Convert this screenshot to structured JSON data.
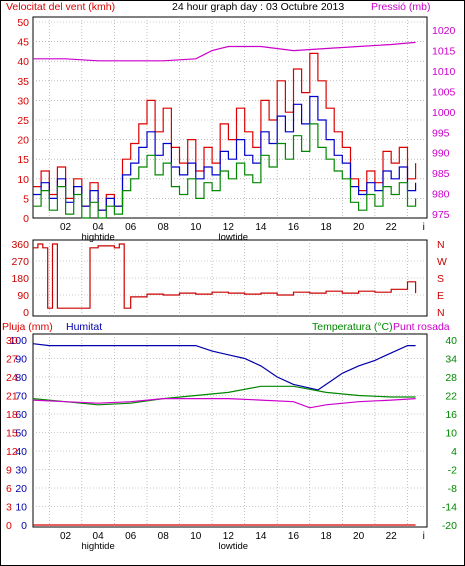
{
  "header": {
    "wind_label": "Velocitat del vent (kmh)",
    "title": "24 hour graph day : 03 Octubre 2013",
    "pressure_label": "Pressió (mb)"
  },
  "colors": {
    "wind": "#dd0000",
    "gust": "#dd0000",
    "speed": "#0000cc",
    "avg": "#008800",
    "pressure": "#cc00cc",
    "direction": "#cc0000",
    "rain": "#dd0000",
    "humidity": "#0000aa",
    "temperature": "#008800",
    "dewpoint": "#cc00cc",
    "grid": "#999999"
  },
  "chart_data": [
    {
      "type": "line",
      "panel": "wind_pressure",
      "x_ticks": [
        "02",
        "04",
        "06",
        "08",
        "10",
        "12",
        "14",
        "16",
        "18",
        "20",
        "22",
        "i"
      ],
      "x_annotations": [
        "hightide",
        "lowtide"
      ],
      "y_left": {
        "label": "Velocitat del vent (kmh)",
        "ticks": [
          0,
          5,
          10,
          15,
          20,
          25,
          30,
          35,
          40,
          45,
          50
        ],
        "range": [
          0,
          50
        ]
      },
      "y_right": {
        "label": "Pressió (mb)",
        "ticks": [
          975,
          980,
          985,
          990,
          995,
          1000,
          1005,
          1010,
          1015,
          1020
        ],
        "range": [
          974,
          1022
        ]
      },
      "series": [
        {
          "key": "gust",
          "points": [
            [
              0,
              8
            ],
            [
              0.5,
              12
            ],
            [
              1,
              6
            ],
            [
              1.5,
              13
            ],
            [
              2,
              5
            ],
            [
              2.5,
              10
            ],
            [
              3,
              3
            ],
            [
              3.5,
              9
            ],
            [
              4,
              2
            ],
            [
              4.5,
              6
            ],
            [
              5,
              3
            ],
            [
              5.5,
              15
            ],
            [
              6,
              19
            ],
            [
              6.5,
              24
            ],
            [
              7,
              30
            ],
            [
              7.5,
              22
            ],
            [
              8,
              28
            ],
            [
              8.5,
              18
            ],
            [
              9,
              14
            ],
            [
              9.5,
              20
            ],
            [
              10,
              12
            ],
            [
              10.5,
              18
            ],
            [
              11,
              14
            ],
            [
              11.5,
              24
            ],
            [
              12,
              20
            ],
            [
              12.5,
              28
            ],
            [
              13,
              22
            ],
            [
              13.5,
              18
            ],
            [
              14,
              30
            ],
            [
              14.5,
              25
            ],
            [
              15,
              35
            ],
            [
              15.5,
              27
            ],
            [
              16,
              38
            ],
            [
              16.5,
              32
            ],
            [
              17,
              42
            ],
            [
              17.5,
              35
            ],
            [
              18,
              28
            ],
            [
              18.5,
              22
            ],
            [
              19,
              18
            ],
            [
              19.5,
              10
            ],
            [
              20,
              7
            ],
            [
              20.5,
              12
            ],
            [
              21,
              9
            ],
            [
              21.5,
              17
            ],
            [
              22,
              14
            ],
            [
              22.5,
              18
            ],
            [
              23,
              10
            ],
            [
              23.5,
              14
            ]
          ]
        },
        {
          "key": "speed",
          "points": [
            [
              0,
              6
            ],
            [
              0.5,
              9
            ],
            [
              1,
              5
            ],
            [
              1.5,
              10
            ],
            [
              2,
              4
            ],
            [
              2.5,
              8
            ],
            [
              3,
              3
            ],
            [
              3.5,
              7
            ],
            [
              4,
              2
            ],
            [
              4.5,
              5
            ],
            [
              5,
              3
            ],
            [
              5.5,
              11
            ],
            [
              6,
              14
            ],
            [
              6.5,
              18
            ],
            [
              7,
              22
            ],
            [
              7.5,
              16
            ],
            [
              8,
              19
            ],
            [
              8.5,
              13
            ],
            [
              9,
              11
            ],
            [
              9.5,
              14
            ],
            [
              10,
              10
            ],
            [
              10.5,
              13
            ],
            [
              11,
              11
            ],
            [
              11.5,
              17
            ],
            [
              12,
              15
            ],
            [
              12.5,
              20
            ],
            [
              13,
              16
            ],
            [
              13.5,
              14
            ],
            [
              14,
              22
            ],
            [
              14.5,
              19
            ],
            [
              15,
              26
            ],
            [
              15.5,
              22
            ],
            [
              16,
              29
            ],
            [
              16.5,
              24
            ],
            [
              17,
              31
            ],
            [
              17.5,
              25
            ],
            [
              18,
              20
            ],
            [
              18.5,
              16
            ],
            [
              19,
              14
            ],
            [
              19.5,
              8
            ],
            [
              20,
              6
            ],
            [
              20.5,
              9
            ],
            [
              21,
              7
            ],
            [
              21.5,
              12
            ],
            [
              22,
              10
            ],
            [
              22.5,
              13
            ],
            [
              23,
              7
            ],
            [
              23.5,
              9
            ]
          ]
        },
        {
          "key": "avg",
          "points": [
            [
              0,
              3
            ],
            [
              0.5,
              7
            ],
            [
              1,
              2
            ],
            [
              1.5,
              8
            ],
            [
              2,
              1
            ],
            [
              2.5,
              6
            ],
            [
              3,
              0
            ],
            [
              3.5,
              4
            ],
            [
              4,
              0
            ],
            [
              4.5,
              3
            ],
            [
              5,
              1
            ],
            [
              5.5,
              7
            ],
            [
              6,
              10
            ],
            [
              6.5,
              13
            ],
            [
              7,
              16
            ],
            [
              7.5,
              11
            ],
            [
              8,
              14
            ],
            [
              8.5,
              8
            ],
            [
              9,
              6
            ],
            [
              9.5,
              10
            ],
            [
              10,
              5
            ],
            [
              10.5,
              9
            ],
            [
              11,
              7
            ],
            [
              11.5,
              12
            ],
            [
              12,
              10
            ],
            [
              12.5,
              14
            ],
            [
              13,
              11
            ],
            [
              13.5,
              9
            ],
            [
              14,
              16
            ],
            [
              14.5,
              13
            ],
            [
              15,
              19
            ],
            [
              15.5,
              15
            ],
            [
              16,
              21
            ],
            [
              16.5,
              17
            ],
            [
              17,
              24
            ],
            [
              17.5,
              18
            ],
            [
              18,
              15
            ],
            [
              18.5,
              12
            ],
            [
              19,
              10
            ],
            [
              19.5,
              4
            ],
            [
              20,
              2
            ],
            [
              20.5,
              6
            ],
            [
              21,
              3
            ],
            [
              21.5,
              8
            ],
            [
              22,
              6
            ],
            [
              22.5,
              9
            ],
            [
              23,
              3
            ],
            [
              23.5,
              5
            ]
          ]
        },
        {
          "key": "pressure",
          "points": [
            [
              0,
              1013
            ],
            [
              2,
              1013
            ],
            [
              4,
              1012.5
            ],
            [
              6,
              1012.5
            ],
            [
              8,
              1012.5
            ],
            [
              10,
              1013
            ],
            [
              11,
              1015
            ],
            [
              12,
              1016
            ],
            [
              14,
              1016
            ],
            [
              16,
              1015
            ],
            [
              18,
              1015.5
            ],
            [
              20,
              1016
            ],
            [
              22,
              1016.5
            ],
            [
              23.5,
              1017
            ]
          ]
        }
      ]
    },
    {
      "type": "line",
      "panel": "wind_direction",
      "y_left": {
        "ticks": [
          0,
          90,
          180,
          270,
          360
        ],
        "range": [
          0,
          360
        ]
      },
      "y_right": {
        "ticks": [
          "N",
          "W",
          "S",
          "E",
          "N"
        ]
      },
      "series": [
        {
          "key": "direction",
          "points": [
            [
              0,
              340
            ],
            [
              0.3,
              360
            ],
            [
              0.6,
              340
            ],
            [
              0.9,
              20
            ],
            [
              1.2,
              360
            ],
            [
              1.5,
              20
            ],
            [
              2,
              20
            ],
            [
              3,
              20
            ],
            [
              3.5,
              340
            ],
            [
              4,
              350
            ],
            [
              4.5,
              350
            ],
            [
              5,
              340
            ],
            [
              5.3,
              360
            ],
            [
              5.6,
              20
            ],
            [
              6,
              80
            ],
            [
              7,
              95
            ],
            [
              8,
              90
            ],
            [
              9,
              100
            ],
            [
              10,
              95
            ],
            [
              11,
              105
            ],
            [
              12,
              100
            ],
            [
              13,
              95
            ],
            [
              14,
              100
            ],
            [
              15,
              90
            ],
            [
              16,
              105
            ],
            [
              17,
              100
            ],
            [
              18,
              110
            ],
            [
              19,
              100
            ],
            [
              20,
              110
            ],
            [
              21,
              105
            ],
            [
              22,
              120
            ],
            [
              23,
              160
            ],
            [
              23.5,
              100
            ]
          ]
        }
      ]
    },
    {
      "type": "line",
      "panel": "rain_humidity_temperature",
      "labels": {
        "rain": "Pluja (mm)",
        "humidity": "Humitat",
        "temperature": "Temperatura (°C)",
        "dewpoint": "Punt rosada"
      },
      "y_left": {
        "ticks": [
          0,
          10,
          20,
          30,
          40,
          50,
          60,
          70,
          80,
          90,
          100
        ],
        "range": [
          0,
          100
        ]
      },
      "y_left_rain": {
        "ticks": [
          0,
          3,
          6,
          9,
          12,
          15,
          18,
          21,
          24,
          27,
          30
        ],
        "range": [
          0,
          30
        ]
      },
      "y_right": {
        "ticks": [
          -20,
          -14,
          -8,
          -2,
          4,
          10,
          16,
          22,
          28,
          34,
          40
        ],
        "range": [
          -20,
          40
        ]
      },
      "series": [
        {
          "key": "humidity",
          "points": [
            [
              0,
              98
            ],
            [
              1,
              97
            ],
            [
              2,
              97
            ],
            [
              4,
              97
            ],
            [
              6,
              97
            ],
            [
              8,
              97
            ],
            [
              10,
              97
            ],
            [
              11,
              94
            ],
            [
              12,
              92
            ],
            [
              13,
              90
            ],
            [
              14,
              86
            ],
            [
              15,
              80
            ],
            [
              16,
              76
            ],
            [
              17,
              74
            ],
            [
              17.5,
              73
            ],
            [
              18,
              76
            ],
            [
              19,
              82
            ],
            [
              20,
              86
            ],
            [
              21,
              89
            ],
            [
              22,
              93
            ],
            [
              23,
              97
            ],
            [
              23.5,
              97
            ]
          ]
        },
        {
          "key": "temperature",
          "points": [
            [
              0,
              21
            ],
            [
              2,
              20
            ],
            [
              4,
              19
            ],
            [
              6,
              19.5
            ],
            [
              8,
              21
            ],
            [
              10,
              22
            ],
            [
              12,
              23
            ],
            [
              14,
              25
            ],
            [
              16,
              25
            ],
            [
              17,
              24
            ],
            [
              18,
              23
            ],
            [
              20,
              22
            ],
            [
              22,
              21.5
            ],
            [
              23.5,
              21.5
            ]
          ]
        },
        {
          "key": "dewpoint",
          "points": [
            [
              0,
              20.5
            ],
            [
              2,
              20
            ],
            [
              4,
              19.5
            ],
            [
              6,
              20
            ],
            [
              8,
              21
            ],
            [
              10,
              21
            ],
            [
              12,
              21
            ],
            [
              14,
              20.5
            ],
            [
              16,
              20
            ],
            [
              17,
              18
            ],
            [
              18,
              19
            ],
            [
              20,
              20
            ],
            [
              22,
              20.5
            ],
            [
              23.5,
              21
            ]
          ]
        },
        {
          "key": "rain",
          "points": [
            [
              0,
              0
            ],
            [
              23.5,
              0
            ]
          ]
        }
      ]
    }
  ]
}
